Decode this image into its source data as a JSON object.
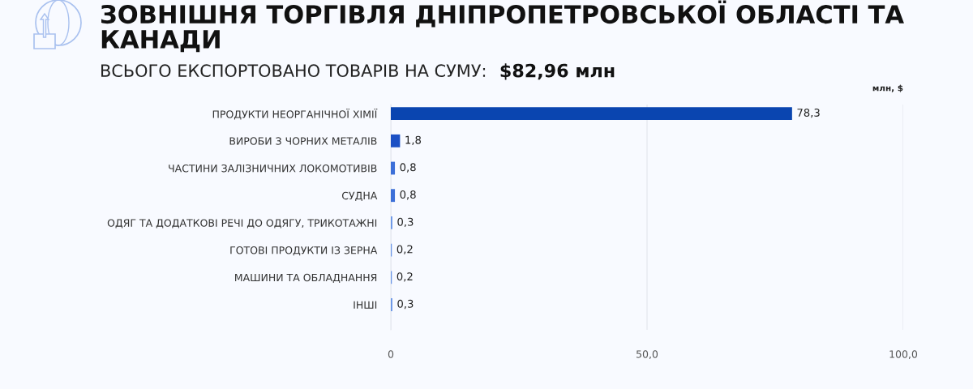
{
  "chart_data": {
    "type": "bar",
    "orientation": "horizontal",
    "title": "ЗОВНІШНЯ ТОРГІВЛЯ ДНІПРОПЕТРОВСЬКОЇ ОБЛАСТІ ТА КАНАДИ",
    "subtitle": "ВСЬОГО ЕКСПОРТОВАНО ТОВАРІВ НА СУМУ:",
    "annotations": [
      "$82,96 млн"
    ],
    "xlabel": "млн, $",
    "categories": [
      "ПРОДУКТИ НЕОРГАНІЧНОЇ ХІМІЇ",
      "ВИРОБИ З ЧОРНИХ МЕТАЛІВ",
      "ЧАСТИНИ ЗАЛІЗНИЧНИХ ЛОКОМОТИВІВ",
      "СУДНА",
      "ОДЯГ ТА ДОДАТКОВІ РЕЧІ ДО ОДЯГУ, ТРИКОТАЖНІ",
      "ГОТОВІ ПРОДУКТИ ІЗ ЗЕРНА",
      "МАШИНИ ТА ОБЛАДНАННЯ",
      "ІНШІ"
    ],
    "values": [
      78.3,
      1.8,
      0.8,
      0.8,
      0.3,
      0.2,
      0.2,
      0.3
    ],
    "value_labels": [
      "78,3",
      "1,8",
      "0,8",
      "0,8",
      "0,3",
      "0,2",
      "0,2",
      "0,3"
    ],
    "colors": [
      "#0a45b0",
      "#1b50c4",
      "#3c6fd8",
      "#3c6fd8",
      "#6a95e6",
      "#6a95e6",
      "#6a95e6",
      "#6a95e6"
    ],
    "xlim": [
      0,
      100
    ],
    "xticks": [
      0,
      {
        "value": 50,
        "label": "50,0"
      },
      {
        "value": 100,
        "label": "100,0"
      }
    ],
    "grid": "x"
  }
}
